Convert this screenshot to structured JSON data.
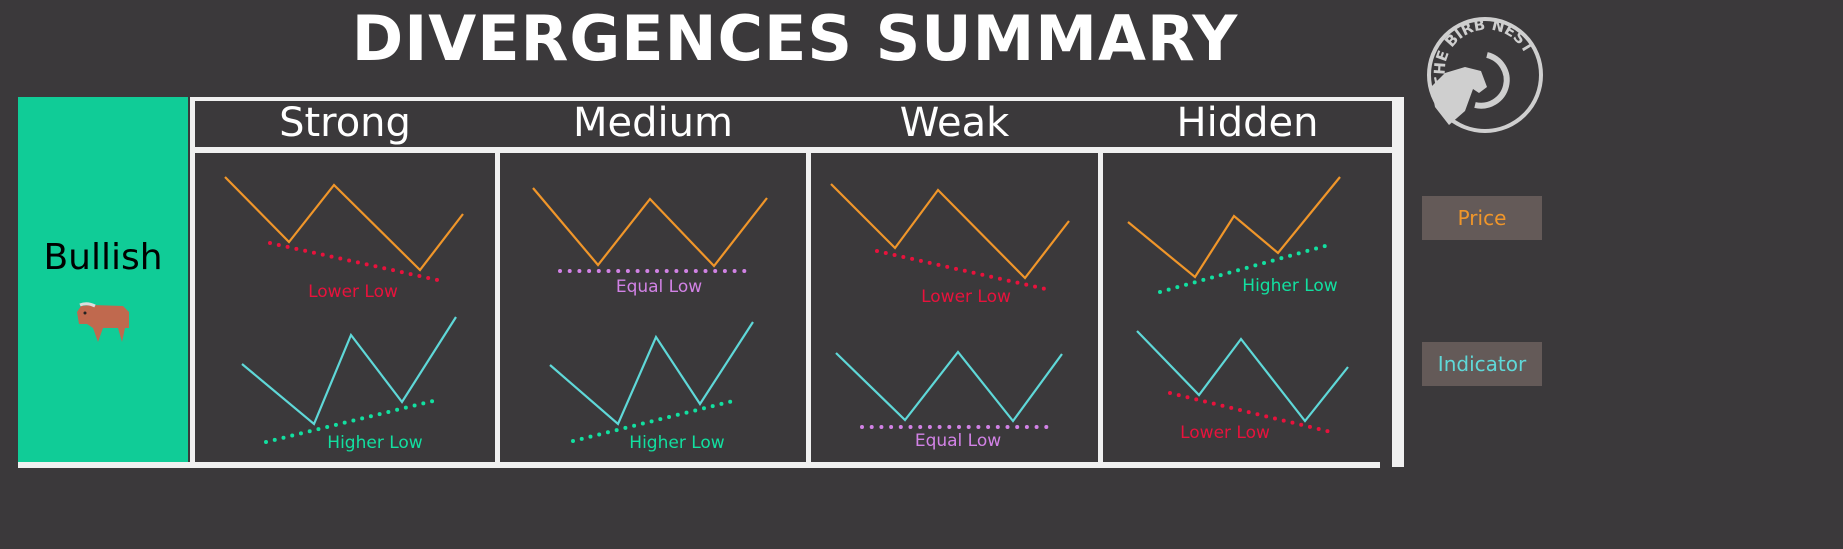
{
  "title": "DIVERGENCES SUMMARY",
  "logo_text": "THE BIRB NEST",
  "row": {
    "label": "Bullish",
    "icon": "bull-icon",
    "color": "#10cc97"
  },
  "columns": [
    {
      "label": "Strong",
      "price_label": "Lower Low",
      "indicator_label": "Higher Low"
    },
    {
      "label": "Medium",
      "price_label": "Equal Low",
      "indicator_label": "Higher Low"
    },
    {
      "label": "Weak",
      "price_label": "Lower Low",
      "indicator_label": "Equal Low"
    },
    {
      "label": "Hidden",
      "price_label": "Higher Low",
      "indicator_label": "Lower Low"
    }
  ],
  "legend": {
    "price": "Price",
    "indicator": "Indicator"
  },
  "colors": {
    "price": "#f0962a",
    "indicator": "#5fd8d8",
    "lower_low": "#e8123c",
    "higher_low": "#12e0a0",
    "equal_low": "#d282e6",
    "background": "#3b393b"
  }
}
